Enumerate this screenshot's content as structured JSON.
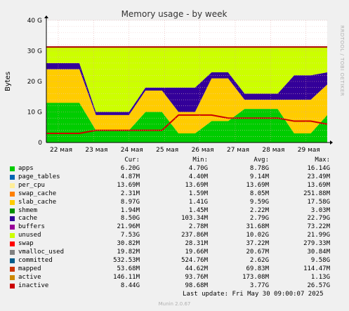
{
  "chart_data": {
    "type": "area",
    "title": "Memory usage - by week",
    "ylabel": "Bytes",
    "side_label": "RRDTOOL / TOBI OETIKER",
    "ylim": [
      0,
      40
    ],
    "yticks": [
      "0",
      "10 G",
      "20 G",
      "30 G",
      "40 G"
    ],
    "xticks": [
      "22 мая",
      "23 мая",
      "24 мая",
      "25 мая",
      "26 мая",
      "27 мая",
      "28 мая",
      "29 мая"
    ],
    "grid": true,
    "total_line": 31.3,
    "stack": [
      {
        "name": "apps",
        "color": "#00cc00",
        "values": [
          13,
          13,
          13,
          4,
          4,
          4,
          10,
          10,
          3,
          3,
          7,
          7,
          11,
          11,
          11,
          3,
          3,
          9
        ]
      },
      {
        "name": "slab_cache",
        "color": "#ffcc00",
        "values": [
          11,
          11,
          11,
          5,
          5,
          5,
          7,
          7,
          7,
          7,
          14,
          14,
          3,
          3,
          3,
          11,
          11,
          10
        ]
      },
      {
        "name": "cache",
        "color": "#330099",
        "values": [
          2,
          2,
          2,
          1,
          1,
          1,
          1,
          1,
          8,
          8,
          2,
          2,
          2,
          2,
          2,
          8,
          8,
          4
        ]
      },
      {
        "name": "unused",
        "color": "#ccff00",
        "values": [
          5.3,
          5.3,
          5.3,
          21.3,
          21.3,
          21.3,
          13.3,
          13.3,
          13.3,
          13.3,
          8.3,
          8.3,
          15.3,
          15.3,
          15.3,
          9.3,
          9.3,
          8.3
        ]
      },
      {
        "name": "swap_line",
        "color": "#cc0000",
        "values": [
          3,
          3,
          3,
          4,
          4,
          4,
          4,
          4,
          9,
          9,
          9,
          8,
          8,
          8,
          8,
          7,
          7,
          6
        ]
      }
    ],
    "legend_header": [
      "Cur:",
      "Min:",
      "Avg:",
      "Max:"
    ],
    "legend": [
      {
        "name": "apps",
        "color": "#00cc00",
        "cur": "6.20G",
        "min": "4.70G",
        "avg": "8.78G",
        "max": "16.14G"
      },
      {
        "name": "page_tables",
        "color": "#0066b3",
        "cur": "4.87M",
        "min": "4.40M",
        "avg": "9.14M",
        "max": "23.49M"
      },
      {
        "name": "per_cpu",
        "color": "#ffee99",
        "cur": "13.69M",
        "min": "13.69M",
        "avg": "13.69M",
        "max": "13.69M"
      },
      {
        "name": "swap_cache",
        "color": "#ff8000",
        "cur": "2.31M",
        "min": "1.59M",
        "avg": "8.05M",
        "max": "251.88M"
      },
      {
        "name": "slab_cache",
        "color": "#ffcc00",
        "cur": "8.97G",
        "min": "1.41G",
        "avg": "9.59G",
        "max": "17.58G"
      },
      {
        "name": "shmem",
        "color": "#008f00",
        "cur": "1.94M",
        "min": "1.45M",
        "avg": "2.22M",
        "max": "3.03M"
      },
      {
        "name": "cache",
        "color": "#330099",
        "cur": "8.50G",
        "min": "103.34M",
        "avg": "2.79G",
        "max": "22.79G"
      },
      {
        "name": "buffers",
        "color": "#990099",
        "cur": "21.96M",
        "min": "2.78M",
        "avg": "31.68M",
        "max": "73.22M"
      },
      {
        "name": "unused",
        "color": "#ccff00",
        "cur": "7.53G",
        "min": "237.86M",
        "avg": "10.02G",
        "max": "21.99G"
      },
      {
        "name": "swap",
        "color": "#ff0000",
        "cur": "30.82M",
        "min": "28.31M",
        "avg": "37.22M",
        "max": "279.33M"
      },
      {
        "name": "vmalloc_used",
        "color": "#808080",
        "cur": "19.82M",
        "min": "19.66M",
        "avg": "20.67M",
        "max": "30.84M"
      },
      {
        "name": "committed",
        "color": "#005c8a",
        "cur": "532.53M",
        "min": "524.76M",
        "avg": "2.62G",
        "max": "9.58G"
      },
      {
        "name": "mapped",
        "color": "#cc3300",
        "cur": "53.68M",
        "min": "44.62M",
        "avg": "69.83M",
        "max": "114.47M"
      },
      {
        "name": "active",
        "color": "#cc8800",
        "cur": "146.11M",
        "min": "93.76M",
        "avg": "173.08M",
        "max": "1.13G"
      },
      {
        "name": "inactive",
        "color": "#cc0000",
        "cur": "8.44G",
        "min": "98.68M",
        "avg": "3.77G",
        "max": "26.57G"
      }
    ],
    "last_update": "Last update:  Fri May 30 09:00:07 2025",
    "version": "Munin 2.0.67"
  }
}
